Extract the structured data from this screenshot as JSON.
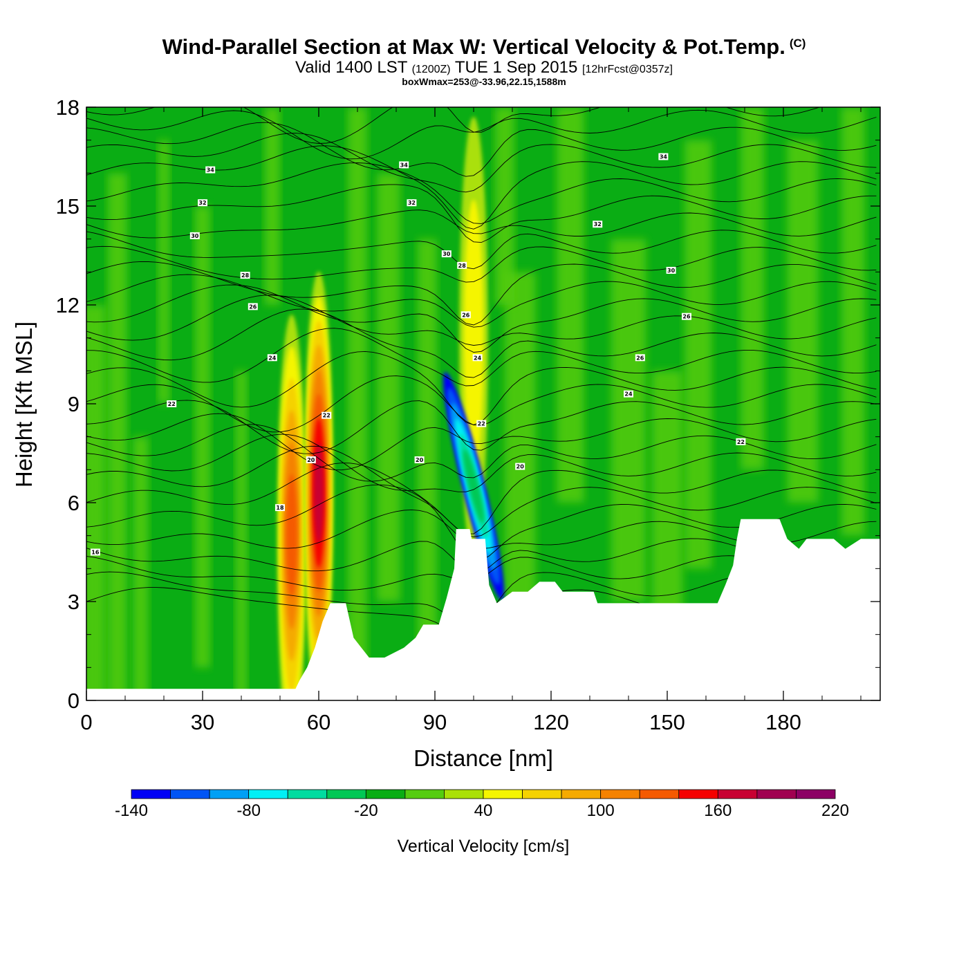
{
  "header": {
    "title": "Wind-Parallel Section at Max W: Vertical Velocity & Pot.Temp.",
    "copyright": "(C)",
    "valid_prefix": "Valid 1400 LST",
    "valid_zulu": "(1200Z)",
    "valid_date": "TUE 1 Sep 2015",
    "forecast": "[12hrFcst@0357z]",
    "box_info": "boxWmax=253@-33.96,22.15,1588m"
  },
  "chart_data": {
    "type": "heatmap",
    "title": "Wind-Parallel Section at Max W: Vertical Velocity & Pot.Temp.",
    "xlabel": "Distance [nm]",
    "ylabel": "Height [Kft MSL]",
    "xlim": [
      0,
      205
    ],
    "ylim": [
      0,
      18
    ],
    "x_ticks": [
      "0",
      "30",
      "60",
      "90",
      "120",
      "150",
      "180"
    ],
    "y_ticks": [
      "0",
      "3",
      "6",
      "9",
      "12",
      "15",
      "18"
    ],
    "x_tick_values": [
      0,
      30,
      60,
      90,
      120,
      150,
      180
    ],
    "y_tick_values": [
      0,
      3,
      6,
      9,
      12,
      15,
      18
    ],
    "background_level_color": "#0aad14",
    "terrain_profile": [
      [
        0,
        0.35
      ],
      [
        54,
        0.35
      ],
      [
        55,
        0.6
      ],
      [
        57,
        1.0
      ],
      [
        59,
        1.6
      ],
      [
        61,
        2.4
      ],
      [
        63,
        2.95
      ],
      [
        67,
        2.95
      ],
      [
        69,
        1.9
      ],
      [
        71,
        1.6
      ],
      [
        73,
        1.3
      ],
      [
        77,
        1.3
      ],
      [
        82,
        1.6
      ],
      [
        85,
        1.9
      ],
      [
        87,
        2.3
      ],
      [
        91,
        2.3
      ],
      [
        93,
        3.1
      ],
      [
        95,
        4.0
      ],
      [
        95.5,
        5.2
      ],
      [
        99,
        5.2
      ],
      [
        99.5,
        4.9
      ],
      [
        103,
        4.9
      ],
      [
        104,
        3.5
      ],
      [
        106,
        2.95
      ],
      [
        110,
        3.3
      ],
      [
        114,
        3.3
      ],
      [
        117,
        3.6
      ],
      [
        121,
        3.6
      ],
      [
        123,
        3.3
      ],
      [
        131,
        3.3
      ],
      [
        132,
        2.95
      ],
      [
        163,
        2.95
      ],
      [
        165,
        3.5
      ],
      [
        167,
        4.1
      ],
      [
        168,
        4.9
      ],
      [
        169,
        5.5
      ],
      [
        179,
        5.5
      ],
      [
        181,
        4.9
      ],
      [
        184,
        4.6
      ],
      [
        186,
        4.9
      ],
      [
        193,
        4.9
      ],
      [
        196,
        4.6
      ],
      [
        200,
        4.9
      ],
      [
        205,
        4.9
      ]
    ],
    "updraft_cores": [
      {
        "x": 53,
        "y": 5.0,
        "w_cms": 130
      },
      {
        "x": 60,
        "y": 6.3,
        "w_cms": 170
      },
      {
        "x": 100,
        "y": 11.0,
        "w_cms": 50
      }
    ],
    "downdraft_cores": [
      {
        "x": 100,
        "y": 6.5,
        "w_cms": -130
      }
    ],
    "theta_contour_labels": [
      {
        "x": 2.3,
        "y": 4.5,
        "label": "16"
      },
      {
        "x": 50,
        "y": 5.85,
        "label": "18"
      },
      {
        "x": 86,
        "y": 7.3,
        "label": "20"
      },
      {
        "x": 112,
        "y": 7.1,
        "label": "20"
      },
      {
        "x": 58,
        "y": 7.3,
        "label": "20"
      },
      {
        "x": 22,
        "y": 9.0,
        "label": "22"
      },
      {
        "x": 62,
        "y": 8.65,
        "label": "22"
      },
      {
        "x": 102,
        "y": 8.4,
        "label": "22"
      },
      {
        "x": 169,
        "y": 7.85,
        "label": "22"
      },
      {
        "x": 48,
        "y": 10.4,
        "label": "24"
      },
      {
        "x": 101,
        "y": 10.4,
        "label": "24"
      },
      {
        "x": 140,
        "y": 9.3,
        "label": "24"
      },
      {
        "x": 43,
        "y": 11.95,
        "label": "26"
      },
      {
        "x": 98,
        "y": 11.7,
        "label": "26"
      },
      {
        "x": 143,
        "y": 10.4,
        "label": "26"
      },
      {
        "x": 155,
        "y": 11.65,
        "label": "26"
      },
      {
        "x": 41,
        "y": 12.9,
        "label": "28"
      },
      {
        "x": 97,
        "y": 13.2,
        "label": "28"
      },
      {
        "x": 28,
        "y": 14.1,
        "label": "30"
      },
      {
        "x": 93,
        "y": 13.55,
        "label": "30"
      },
      {
        "x": 151,
        "y": 13.05,
        "label": "30"
      },
      {
        "x": 30,
        "y": 15.1,
        "label": "32"
      },
      {
        "x": 84,
        "y": 15.1,
        "label": "32"
      },
      {
        "x": 132,
        "y": 14.45,
        "label": "32"
      },
      {
        "x": 32,
        "y": 16.1,
        "label": "34"
      },
      {
        "x": 82,
        "y": 16.25,
        "label": "34"
      },
      {
        "x": 149,
        "y": 16.5,
        "label": "34"
      }
    ]
  },
  "colorbar": {
    "title": "Vertical Velocity [cm/s]",
    "tick_labels": [
      "-140",
      "-80",
      "-20",
      "40",
      "100",
      "160",
      "220"
    ],
    "levels": [
      -140,
      -120,
      -100,
      -80,
      -60,
      -40,
      -20,
      0,
      20,
      40,
      60,
      80,
      100,
      120,
      140,
      160,
      180,
      200,
      220
    ],
    "colors": [
      "#0000f5",
      "#0055f5",
      "#00a0f5",
      "#00f0f5",
      "#00dca0",
      "#00c855",
      "#0aad14",
      "#55cc10",
      "#aae008",
      "#f5f500",
      "#f5d200",
      "#f5aa00",
      "#f58200",
      "#f55a00",
      "#f50000",
      "#c80032",
      "#a00050",
      "#8c0064"
    ]
  }
}
